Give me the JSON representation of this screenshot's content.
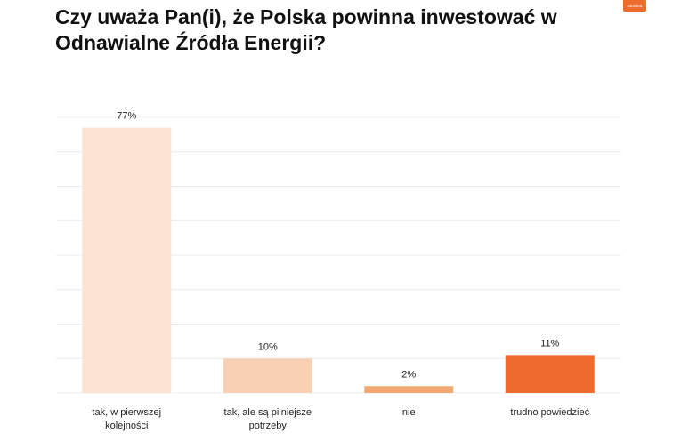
{
  "title": "Czy uważa Pan(i), że Polska powinna inwestować w Odnawialne Źródła Energii?",
  "logo_text": "columbus",
  "chart_data": {
    "type": "bar",
    "categories": [
      [
        "tak, w pierwszej",
        "kolejności"
      ],
      [
        "tak, ale są pilniejsze",
        "potrzeby"
      ],
      [
        "nie"
      ],
      [
        "trudno powiedzieć"
      ]
    ],
    "values": [
      77,
      10,
      2,
      11
    ],
    "value_labels": [
      "77%",
      "10%",
      "2%",
      "11%"
    ],
    "colors": [
      "#fbe3d4",
      "#f8d1b5",
      "#f3a873",
      "#ec6b2d"
    ],
    "ylim": [
      0,
      80
    ],
    "grid": true,
    "legend": "none"
  }
}
